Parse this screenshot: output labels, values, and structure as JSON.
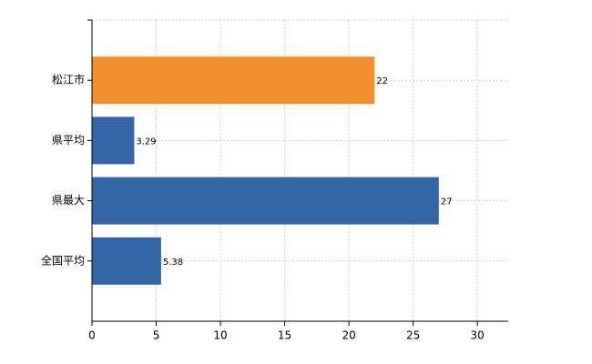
{
  "chart_data": {
    "type": "bar",
    "orientation": "horizontal",
    "categories": [
      "松江市",
      "県平均",
      "県最大",
      "全国平均"
    ],
    "values": [
      22,
      3.29,
      27,
      5.38
    ],
    "colors": [
      "#f0912d",
      "#3466a7",
      "#3466a7",
      "#3466a7"
    ],
    "xlim": [
      0,
      32.4
    ],
    "xticks": [
      0,
      5,
      10,
      15,
      20,
      25,
      30
    ],
    "grid": true
  }
}
